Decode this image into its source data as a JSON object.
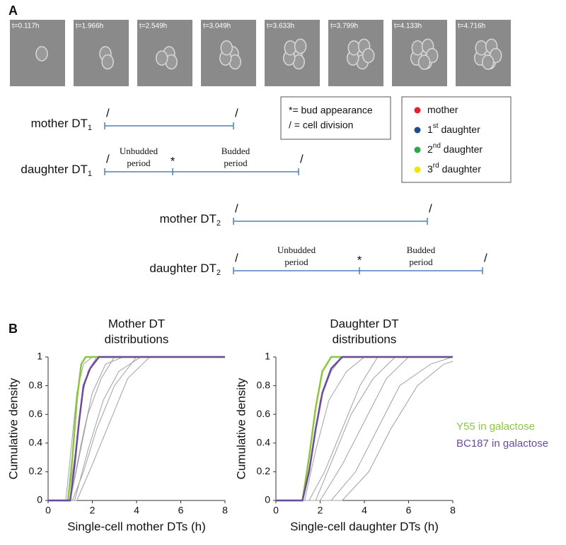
{
  "panel_a": {
    "label": "A",
    "frames": [
      "t=0.117h",
      "t=1.966h",
      "t=2.549h",
      "t=3.049h",
      "t=3.633h",
      "t=3.799h",
      "t=4.133h",
      "t=4.716h"
    ],
    "division_mark": "/",
    "bud_mark": "*",
    "timelines": [
      {
        "label": "mother DT",
        "sub": "1"
      },
      {
        "label": "daughter DT",
        "sub": "1",
        "unbudded": [
          "Unbudded",
          "period"
        ],
        "budded": [
          "Budded",
          "period"
        ]
      },
      {
        "label": "mother DT",
        "sub": "2"
      },
      {
        "label": "daughter DT",
        "sub": "2",
        "unbudded": [
          "Unbudded",
          "period"
        ],
        "budded": [
          "Budded",
          "period"
        ]
      }
    ],
    "key": [
      "*= bud appearance",
      "/ = cell division"
    ],
    "cells": [
      {
        "pre": "mother",
        "color": "#e8202a"
      },
      {
        "pre": "1",
        "sup": "st",
        "post": " daughter",
        "color": "#1f4e8c"
      },
      {
        "pre": "2",
        "sup": "nd",
        "post": " daughter",
        "color": "#2aa84a"
      },
      {
        "pre": "3",
        "sup": "rd",
        "post": " daughter",
        "color": "#f2e600"
      }
    ]
  },
  "panel_b": {
    "label": "B"
  },
  "chart_data": [
    {
      "type": "line",
      "title": [
        "Mother DT",
        "distributions"
      ],
      "xlabel": "Single-cell mother DTs (h)",
      "ylabel": "Cumulative density",
      "xlim": [
        0,
        8
      ],
      "ylim": [
        0,
        1
      ],
      "xticks": [
        0,
        2,
        4,
        6,
        8
      ],
      "yticks": [
        0,
        0.2,
        0.4,
        0.6,
        0.8,
        1
      ],
      "series": [
        {
          "color": "#a0a0a0",
          "x": [
            0,
            0.9,
            1.2,
            1.5,
            1.8,
            2.2,
            8
          ],
          "values": [
            0,
            0,
            0.3,
            0.7,
            0.9,
            1,
            1
          ]
        },
        {
          "color": "#a0a0a0",
          "x": [
            0,
            1.0,
            1.4,
            1.8,
            2.4,
            3.0,
            8
          ],
          "values": [
            0,
            0,
            0.3,
            0.6,
            0.85,
            1,
            1
          ]
        },
        {
          "color": "#a0a0a0",
          "x": [
            0,
            1.1,
            1.6,
            2.2,
            3.0,
            4.0,
            8
          ],
          "values": [
            0,
            0,
            0.2,
            0.5,
            0.8,
            1,
            1
          ]
        },
        {
          "color": "#a0a0a0",
          "x": [
            0,
            1.3,
            2.0,
            2.8,
            3.6,
            4.6,
            8
          ],
          "values": [
            0,
            0,
            0.25,
            0.55,
            0.85,
            1,
            1
          ]
        },
        {
          "color": "#a0a0a0",
          "x": [
            0,
            0.8,
            1.0,
            1.3,
            1.6,
            2.0,
            8
          ],
          "values": [
            0,
            0,
            0.3,
            0.75,
            0.95,
            1,
            1
          ]
        },
        {
          "color": "#a0a0a0",
          "x": [
            0,
            1.2,
            1.8,
            2.5,
            3.2,
            4.2,
            8
          ],
          "values": [
            0,
            0,
            0.35,
            0.7,
            0.9,
            1,
            1
          ]
        },
        {
          "color": "#a0a0a0",
          "x": [
            0,
            1.0,
            1.5,
            2.0,
            2.6,
            3.4,
            8
          ],
          "values": [
            0,
            0,
            0.4,
            0.75,
            0.95,
            1,
            1
          ]
        },
        {
          "color": "#8cc63f",
          "x": [
            0,
            0.9,
            1.1,
            1.3,
            1.5,
            1.7,
            8
          ],
          "values": [
            0,
            0,
            0.3,
            0.7,
            0.95,
            1,
            1
          ]
        },
        {
          "color": "#6b4c9a",
          "x": [
            0,
            1.0,
            1.2,
            1.4,
            1.6,
            1.9,
            2.3,
            8
          ],
          "values": [
            0,
            0,
            0.25,
            0.55,
            0.8,
            0.92,
            1,
            1
          ]
        }
      ]
    },
    {
      "type": "line",
      "title": [
        "Daughter DT",
        "distributions"
      ],
      "xlabel": "Single-cell daughter DTs (h)",
      "ylabel": "Cumulative density",
      "xlim": [
        0,
        8
      ],
      "ylim": [
        0,
        1
      ],
      "xticks": [
        0,
        2,
        4,
        6,
        8
      ],
      "yticks": [
        0,
        0.2,
        0.4,
        0.6,
        0.8,
        1
      ],
      "series": [
        {
          "color": "#a0a0a0",
          "x": [
            0,
            1.2,
            1.6,
            2.0,
            2.5,
            3.0,
            8
          ],
          "values": [
            0,
            0,
            0.3,
            0.7,
            0.9,
            1,
            1
          ]
        },
        {
          "color": "#a0a0a0",
          "x": [
            0,
            1.5,
            2.2,
            3.0,
            3.8,
            4.6,
            8
          ],
          "values": [
            0,
            0,
            0.2,
            0.5,
            0.8,
            1,
            1
          ]
        },
        {
          "color": "#a0a0a0",
          "x": [
            0,
            2.0,
            3.0,
            4.0,
            5.0,
            6.0,
            8
          ],
          "values": [
            0,
            0,
            0.25,
            0.55,
            0.85,
            1,
            1
          ]
        },
        {
          "color": "#a0a0a0",
          "x": [
            0,
            2.5,
            3.6,
            4.6,
            5.6,
            7.0,
            8
          ],
          "values": [
            0,
            0,
            0.2,
            0.5,
            0.8,
            0.95,
            1
          ]
        },
        {
          "color": "#a0a0a0",
          "x": [
            0,
            3.0,
            4.2,
            5.2,
            6.4,
            7.6,
            8
          ],
          "values": [
            0,
            0,
            0.2,
            0.5,
            0.8,
            0.95,
            0.97
          ]
        },
        {
          "color": "#a0a0a0",
          "x": [
            0,
            1.3,
            1.8,
            2.4,
            3.2,
            4.0,
            8
          ],
          "values": [
            0,
            0,
            0.35,
            0.7,
            0.9,
            1,
            1
          ]
        },
        {
          "color": "#a0a0a0",
          "x": [
            0,
            1.8,
            2.6,
            3.4,
            4.4,
            5.4,
            8
          ],
          "values": [
            0,
            0,
            0.3,
            0.6,
            0.85,
            1,
            1
          ]
        },
        {
          "color": "#8cc63f",
          "name": "Y55 in galactose",
          "x": [
            0,
            1.2,
            1.5,
            1.8,
            2.1,
            2.5,
            8
          ],
          "values": [
            0,
            0,
            0.3,
            0.65,
            0.9,
            1,
            1
          ]
        },
        {
          "color": "#6b4c9a",
          "name": "BC187 in galactose",
          "x": [
            0,
            1.2,
            1.5,
            1.8,
            2.1,
            2.5,
            3.0,
            8
          ],
          "values": [
            0,
            0,
            0.2,
            0.5,
            0.75,
            0.92,
            1,
            1
          ]
        }
      ]
    }
  ]
}
